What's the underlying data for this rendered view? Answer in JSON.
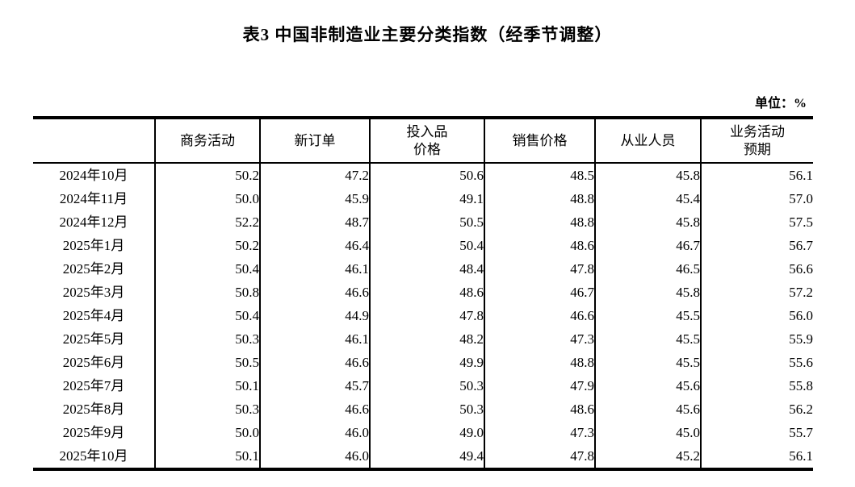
{
  "page": {
    "background_color": "#ffffff",
    "text_color": "#000000",
    "border_color": "#000000"
  },
  "title": "表3 中国非制造业主要分类指数（经季节调整）",
  "unit_label": "单位：%",
  "table": {
    "columns": [
      "",
      "商务活动",
      "新订单",
      "投入品\n价格",
      "销售价格",
      "从业人员",
      "业务活动\n预期"
    ],
    "rows": [
      {
        "month": "2024年10月",
        "values": [
          "50.2",
          "47.2",
          "50.6",
          "48.5",
          "45.8",
          "56.1"
        ]
      },
      {
        "month": "2024年11月",
        "values": [
          "50.0",
          "45.9",
          "49.1",
          "48.8",
          "45.4",
          "57.0"
        ]
      },
      {
        "month": "2024年12月",
        "values": [
          "52.2",
          "48.7",
          "50.5",
          "48.8",
          "45.8",
          "57.5"
        ]
      },
      {
        "month": "2025年1月",
        "values": [
          "50.2",
          "46.4",
          "50.4",
          "48.6",
          "46.7",
          "56.7"
        ]
      },
      {
        "month": "2025年2月",
        "values": [
          "50.4",
          "46.1",
          "48.4",
          "47.8",
          "46.5",
          "56.6"
        ]
      },
      {
        "month": "2025年3月",
        "values": [
          "50.8",
          "46.6",
          "48.6",
          "46.7",
          "45.8",
          "57.2"
        ]
      },
      {
        "month": "2025年4月",
        "values": [
          "50.4",
          "44.9",
          "47.8",
          "46.6",
          "45.5",
          "56.0"
        ]
      },
      {
        "month": "2025年5月",
        "values": [
          "50.3",
          "46.1",
          "48.2",
          "47.3",
          "45.5",
          "55.9"
        ]
      },
      {
        "month": "2025年6月",
        "values": [
          "50.5",
          "46.6",
          "49.9",
          "48.8",
          "45.5",
          "55.6"
        ]
      },
      {
        "month": "2025年7月",
        "values": [
          "50.1",
          "45.7",
          "50.3",
          "47.9",
          "45.6",
          "55.8"
        ]
      },
      {
        "month": "2025年8月",
        "values": [
          "50.3",
          "46.6",
          "50.3",
          "48.6",
          "45.6",
          "56.2"
        ]
      },
      {
        "month": "2025年9月",
        "values": [
          "50.0",
          "46.0",
          "49.0",
          "47.3",
          "45.0",
          "55.7"
        ]
      },
      {
        "month": "2025年10月",
        "values": [
          "50.1",
          "46.0",
          "49.4",
          "47.8",
          "45.2",
          "56.1"
        ]
      }
    ]
  }
}
